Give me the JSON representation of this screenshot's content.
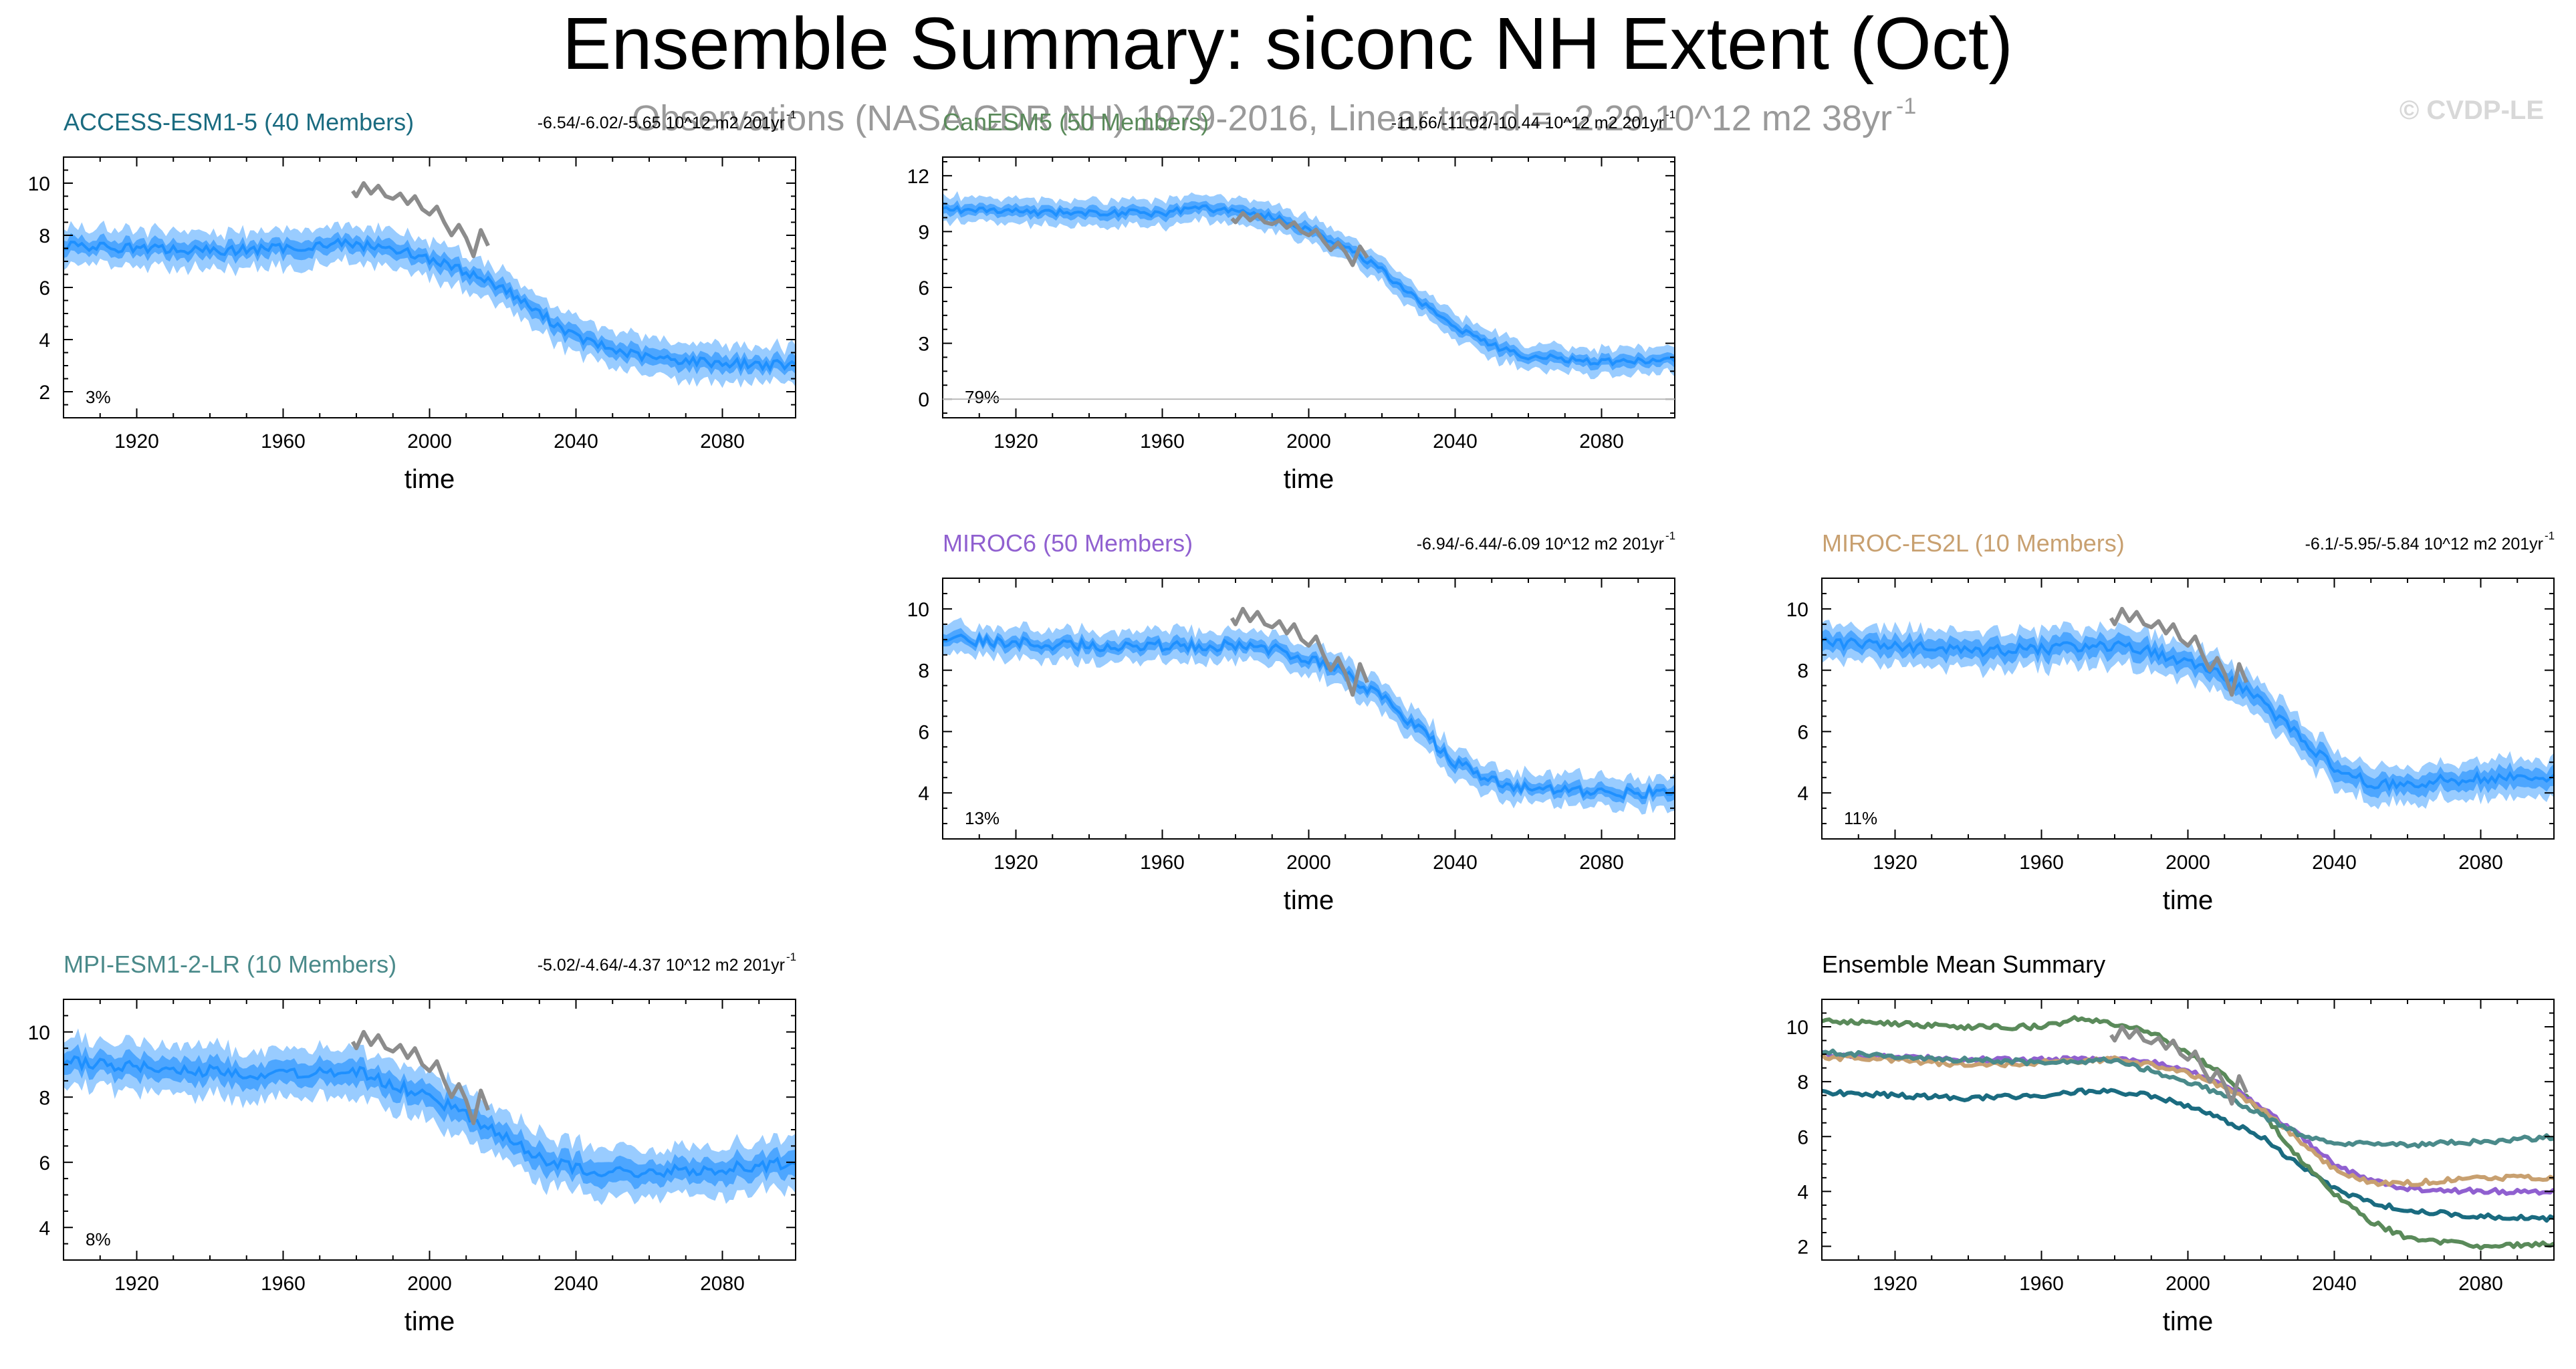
{
  "page": {
    "title": "Ensemble Summary: siconc NH Extent (Oct)",
    "subtitle": "Observations (NASA CDR NH) 1979-2016, Linear trend = -2.29 10^12 m2 38yr",
    "subtitle_exp": "-1",
    "watermark": "© CVDP-LE"
  },
  "obs_color": "#8c8c8c",
  "band_outer_color": "#99ccff",
  "band_inner_color": "#4da6ff",
  "mean_line_color": "#1e90ff",
  "chart_data": [
    {
      "id": "access",
      "type": "area",
      "title": "ACCESS-ESM1-5 (40 Members)",
      "title_color": "#1a6b80",
      "trend": "-6.54/-6.02/-5.65 10^12 m2 201yr",
      "trend_exp": "-1",
      "percent": "3%",
      "xlabel": "time",
      "xlim": [
        1900,
        2100
      ],
      "xticks": [
        "1920",
        "1960",
        "2000",
        "2040",
        "2080"
      ],
      "xtick_values": [
        1920,
        1960,
        2000,
        2040,
        2080
      ],
      "ylim": [
        1,
        11
      ],
      "yticks": [
        "2",
        "4",
        "6",
        "8",
        "10"
      ],
      "ytick_values": [
        2,
        4,
        6,
        8,
        10
      ],
      "mean_x": [
        1900,
        1920,
        1940,
        1960,
        1975,
        1990,
        2000,
        2010,
        2020,
        2030,
        2040,
        2050,
        2060,
        2080,
        2100
      ],
      "mean_y": [
        7.6,
        7.5,
        7.4,
        7.5,
        7.7,
        7.5,
        7.1,
        6.6,
        6.0,
        5.0,
        4.1,
        3.6,
        3.3,
        3.1,
        3.0
      ],
      "band_inner": 0.3,
      "band_outer": 0.7,
      "obs_x": [
        1979,
        1980,
        1982,
        1984,
        1986,
        1988,
        1990,
        1992,
        1994,
        1996,
        1998,
        2000,
        2002,
        2004,
        2006,
        2008,
        2010,
        2012,
        2014,
        2016
      ],
      "obs_y": [
        9.7,
        9.5,
        10.0,
        9.6,
        9.9,
        9.5,
        9.4,
        9.6,
        9.2,
        9.5,
        9.0,
        8.8,
        9.1,
        8.5,
        8.0,
        8.4,
        7.9,
        7.2,
        8.2,
        7.6
      ]
    },
    {
      "id": "canesm5",
      "type": "area",
      "title": "CanESM5 (50 Members)",
      "title_color": "#5a8a5a",
      "trend": "-11.66/-11.02/-10.44 10^12 m2 201yr",
      "trend_exp": "-1",
      "percent": "79%",
      "xlabel": "time",
      "xlim": [
        1900,
        2100
      ],
      "xticks": [
        "1920",
        "1960",
        "2000",
        "2040",
        "2080"
      ],
      "xtick_values": [
        1920,
        1960,
        2000,
        2040,
        2080
      ],
      "ylim": [
        -1,
        13
      ],
      "yticks": [
        "0",
        "3",
        "6",
        "9",
        "12"
      ],
      "ytick_values": [
        0,
        3,
        6,
        9,
        12
      ],
      "mean_x": [
        1900,
        1920,
        1940,
        1960,
        1970,
        1980,
        1990,
        2000,
        2010,
        2020,
        2030,
        2040,
        2050,
        2060,
        2080,
        2100
      ],
      "mean_y": [
        10.2,
        10.1,
        10.0,
        10.0,
        10.3,
        10.1,
        9.8,
        9.1,
        8.2,
        6.9,
        5.3,
        3.9,
        2.9,
        2.3,
        2.0,
        2.1
      ],
      "band_inner": 0.3,
      "band_outer": 0.7,
      "obs_x": [
        1979,
        1980,
        1982,
        1984,
        1986,
        1988,
        1990,
        1992,
        1994,
        1996,
        1998,
        2000,
        2002,
        2004,
        2006,
        2008,
        2010,
        2012,
        2014,
        2016
      ],
      "obs_y": [
        9.7,
        9.5,
        10.0,
        9.6,
        9.9,
        9.5,
        9.4,
        9.6,
        9.2,
        9.5,
        9.0,
        8.8,
        9.1,
        8.5,
        8.0,
        8.4,
        7.9,
        7.2,
        8.2,
        7.6
      ]
    },
    {
      "id": "miroc6",
      "type": "area",
      "title": "MIROC6 (50 Members)",
      "title_color": "#9060d0",
      "trend": "-6.94/-6.44/-6.09 10^12 m2 201yr",
      "trend_exp": "-1",
      "percent": "13%",
      "xlabel": "time",
      "xlim": [
        1900,
        2100
      ],
      "xticks": [
        "1920",
        "1960",
        "2000",
        "2040",
        "2080"
      ],
      "xtick_values": [
        1920,
        1960,
        2000,
        2040,
        2080
      ],
      "ylim": [
        2.5,
        11
      ],
      "yticks": [
        "4",
        "6",
        "8",
        "10"
      ],
      "ytick_values": [
        4,
        6,
        8,
        10
      ],
      "mean_x": [
        1900,
        1920,
        1940,
        1960,
        1980,
        1990,
        2000,
        2010,
        2020,
        2030,
        2040,
        2050,
        2060,
        2080,
        2100
      ],
      "mean_y": [
        9.0,
        8.9,
        8.8,
        8.8,
        8.8,
        8.7,
        8.4,
        7.9,
        7.1,
        6.1,
        5.0,
        4.4,
        4.1,
        4.0,
        4.0
      ],
      "band_inner": 0.2,
      "band_outer": 0.5,
      "obs_x": [
        1979,
        1980,
        1982,
        1984,
        1986,
        1988,
        1990,
        1992,
        1994,
        1996,
        1998,
        2000,
        2002,
        2004,
        2006,
        2008,
        2010,
        2012,
        2014,
        2016
      ],
      "obs_y": [
        9.7,
        9.5,
        10.0,
        9.6,
        9.9,
        9.5,
        9.4,
        9.6,
        9.2,
        9.5,
        9.0,
        8.8,
        9.1,
        8.5,
        8.0,
        8.4,
        7.9,
        7.2,
        8.2,
        7.6
      ]
    },
    {
      "id": "mirocs2l",
      "type": "area",
      "title": "MIROC-ES2L (10 Members)",
      "title_color": "#c8a070",
      "trend": "-6.1/-5.95/-5.84 10^12 m2 201yr",
      "trend_exp": "-1",
      "percent": "11%",
      "xlabel": "time",
      "xlim": [
        1900,
        2100
      ],
      "xticks": [
        "1920",
        "1960",
        "2000",
        "2040",
        "2080"
      ],
      "xtick_values": [
        1920,
        1960,
        2000,
        2040,
        2080
      ],
      "ylim": [
        2.5,
        11
      ],
      "yticks": [
        "4",
        "6",
        "8",
        "10"
      ],
      "ytick_values": [
        4,
        6,
        8,
        10
      ],
      "mean_x": [
        1900,
        1920,
        1940,
        1960,
        1980,
        1990,
        2000,
        2010,
        2020,
        2030,
        2040,
        2050,
        2060,
        2080,
        2100
      ],
      "mean_y": [
        8.9,
        8.8,
        8.6,
        8.7,
        8.8,
        8.6,
        8.3,
        7.8,
        7.0,
        5.9,
        4.8,
        4.3,
        4.3,
        4.5,
        4.5
      ],
      "band_inner": 0.3,
      "band_outer": 0.6,
      "obs_x": [
        1979,
        1980,
        1982,
        1984,
        1986,
        1988,
        1990,
        1992,
        1994,
        1996,
        1998,
        2000,
        2002,
        2004,
        2006,
        2008,
        2010,
        2012,
        2014,
        2016
      ],
      "obs_y": [
        9.7,
        9.5,
        10.0,
        9.6,
        9.9,
        9.5,
        9.4,
        9.6,
        9.2,
        9.5,
        9.0,
        8.8,
        9.1,
        8.5,
        8.0,
        8.4,
        7.9,
        7.2,
        8.2,
        7.6
      ]
    },
    {
      "id": "mpi",
      "type": "area",
      "title": "MPI-ESM1-2-LR (10 Members)",
      "title_color": "#4a8a8a",
      "trend": "-5.02/-4.64/-4.37 10^12 m2 201yr",
      "trend_exp": "-1",
      "percent": "8%",
      "xlabel": "time",
      "xlim": [
        1900,
        2100
      ],
      "xticks": [
        "1920",
        "1960",
        "2000",
        "2040",
        "2080"
      ],
      "xtick_values": [
        1920,
        1960,
        2000,
        2040,
        2080
      ],
      "ylim": [
        3,
        11
      ],
      "yticks": [
        "4",
        "6",
        "8",
        "10"
      ],
      "ytick_values": [
        4,
        6,
        8,
        10
      ],
      "mean_x": [
        1900,
        1920,
        1940,
        1960,
        1980,
        1990,
        2000,
        2010,
        2020,
        2030,
        2040,
        2050,
        2060,
        2080,
        2100
      ],
      "mean_y": [
        9.1,
        8.9,
        8.8,
        8.7,
        8.8,
        8.4,
        8.0,
        7.5,
        6.8,
        6.1,
        5.8,
        5.7,
        5.7,
        5.8,
        6.0
      ],
      "band_inner": 0.35,
      "band_outer": 0.75,
      "obs_x": [
        1979,
        1980,
        1982,
        1984,
        1986,
        1988,
        1990,
        1992,
        1994,
        1996,
        1998,
        2000,
        2002,
        2004,
        2006,
        2008,
        2010,
        2012,
        2014,
        2016
      ],
      "obs_y": [
        9.7,
        9.5,
        10.0,
        9.6,
        9.9,
        9.5,
        9.4,
        9.6,
        9.2,
        9.5,
        9.0,
        8.8,
        9.1,
        8.5,
        8.0,
        8.4,
        7.9,
        7.2,
        8.2,
        7.6
      ]
    },
    {
      "id": "summary",
      "type": "line",
      "title": "Ensemble Mean Summary",
      "title_color": "#000000",
      "xlabel": "time",
      "xlim": [
        1900,
        2100
      ],
      "xticks": [
        "1920",
        "1960",
        "2000",
        "2040",
        "2080"
      ],
      "xtick_values": [
        1920,
        1960,
        2000,
        2040,
        2080
      ],
      "ylim": [
        1.5,
        11
      ],
      "yticks": [
        "2",
        "4",
        "6",
        "8",
        "10"
      ],
      "ytick_values": [
        2,
        4,
        6,
        8,
        10
      ],
      "series": [
        {
          "color": "#1a6b80",
          "x": [
            1900,
            1920,
            1940,
            1960,
            1975,
            1990,
            2000,
            2010,
            2020,
            2030,
            2040,
            2050,
            2060,
            2080,
            2100
          ],
          "y": [
            7.6,
            7.5,
            7.4,
            7.5,
            7.7,
            7.5,
            7.1,
            6.6,
            6.0,
            5.0,
            4.1,
            3.6,
            3.3,
            3.1,
            3.0
          ]
        },
        {
          "color": "#5a8a5a",
          "x": [
            1900,
            1920,
            1940,
            1960,
            1970,
            1980,
            1990,
            2000,
            2010,
            2020,
            2030,
            2040,
            2050,
            2060,
            2080,
            2100
          ],
          "y": [
            10.2,
            10.1,
            10.0,
            10.0,
            10.3,
            10.1,
            9.8,
            9.1,
            8.2,
            6.9,
            5.3,
            3.9,
            2.9,
            2.3,
            2.0,
            2.1
          ]
        },
        {
          "color": "#9060d0",
          "x": [
            1900,
            1920,
            1940,
            1960,
            1980,
            1990,
            2000,
            2010,
            2020,
            2030,
            2040,
            2050,
            2060,
            2080,
            2100
          ],
          "y": [
            9.0,
            8.9,
            8.8,
            8.8,
            8.8,
            8.7,
            8.4,
            7.9,
            7.1,
            6.1,
            5.0,
            4.4,
            4.1,
            4.0,
            4.0
          ]
        },
        {
          "color": "#c8a070",
          "x": [
            1900,
            1920,
            1940,
            1960,
            1980,
            1990,
            2000,
            2010,
            2020,
            2030,
            2040,
            2050,
            2060,
            2080,
            2100
          ],
          "y": [
            8.9,
            8.8,
            8.6,
            8.7,
            8.8,
            8.6,
            8.3,
            7.8,
            7.0,
            5.9,
            4.8,
            4.3,
            4.3,
            4.5,
            4.5
          ]
        },
        {
          "color": "#4a8a8a",
          "x": [
            1900,
            1920,
            1940,
            1960,
            1980,
            1990,
            2000,
            2010,
            2020,
            2030,
            2040,
            2050,
            2060,
            2080,
            2100
          ],
          "y": [
            9.1,
            8.9,
            8.8,
            8.7,
            8.8,
            8.4,
            8.0,
            7.5,
            6.8,
            6.1,
            5.8,
            5.7,
            5.7,
            5.8,
            6.0
          ]
        },
        {
          "color": "#8c8c8c",
          "x": [
            1979,
            1980,
            1982,
            1984,
            1986,
            1988,
            1990,
            1992,
            1994,
            1996,
            1998,
            2000,
            2002,
            2004,
            2006,
            2008,
            2010,
            2012,
            2014,
            2016
          ],
          "y": [
            9.7,
            9.5,
            10.0,
            9.6,
            9.9,
            9.5,
            9.4,
            9.6,
            9.2,
            9.5,
            9.0,
            8.8,
            9.1,
            8.5,
            8.0,
            8.4,
            7.9,
            7.2,
            8.2,
            7.6
          ]
        }
      ]
    }
  ]
}
